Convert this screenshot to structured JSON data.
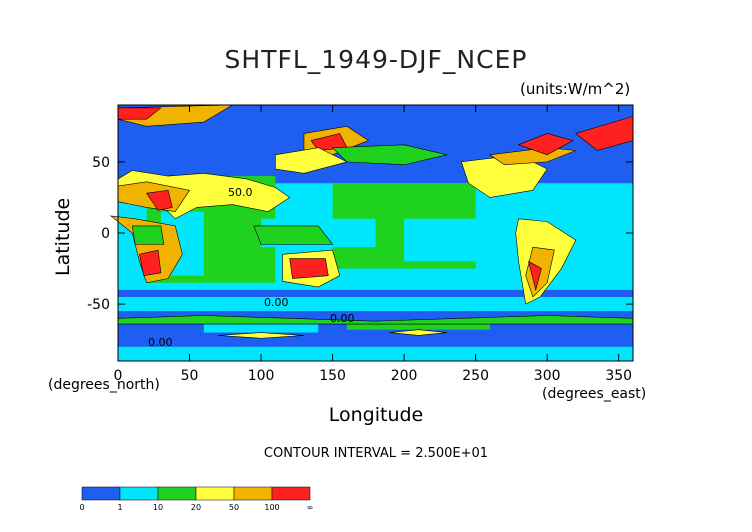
{
  "chart_data": {
    "type": "heatmap",
    "title": "SHTFL_1949-DJF_NCEP",
    "units": "(units:W/m^2)",
    "xlabel": "Longitude",
    "ylabel": "Latitude",
    "x_coord_label": "(degrees_east)",
    "y_coord_label": "(degrees_north)",
    "xlim": [
      0,
      360
    ],
    "ylim": [
      -90,
      90
    ],
    "x_ticks": [
      0,
      50,
      100,
      150,
      200,
      250,
      300,
      350
    ],
    "y_ticks": [
      -50,
      0,
      50
    ],
    "x_tick_labels": [
      "0",
      "50",
      "100",
      "150",
      "200",
      "250",
      "300",
      "350"
    ],
    "y_tick_labels": [
      "-50",
      "0",
      "50"
    ],
    "contour_interval_text": "CONTOUR INTERVAL = 2.500E+01",
    "contour_labels": [
      "50.0",
      "0.00",
      "0.00",
      "0.00"
    ],
    "colorbar": {
      "levels": [
        "0",
        "1",
        "10",
        "20",
        "50",
        "100",
        "∞"
      ],
      "colors": [
        "#1e5ef0",
        "#00e6ff",
        "#1ed21e",
        "#ffff3c",
        "#f0b400",
        "#ff2020"
      ]
    }
  }
}
